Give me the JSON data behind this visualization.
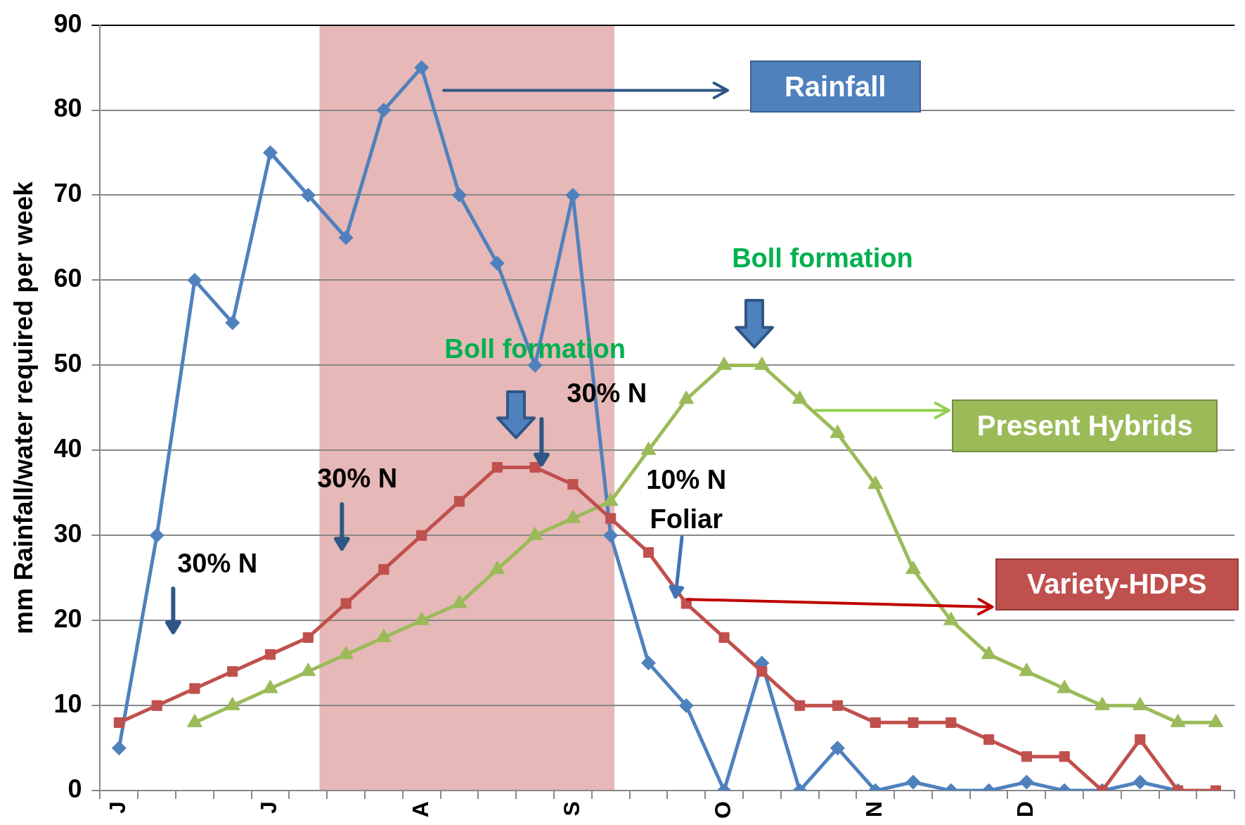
{
  "chart_data": {
    "type": "line",
    "ylabel": "mm Rainfall/water required per week",
    "categories": [
      "J",
      null,
      null,
      null,
      "J",
      null,
      null,
      null,
      "A",
      null,
      null,
      null,
      "S",
      null,
      null,
      null,
      "O",
      null,
      null,
      null,
      "N",
      null,
      null,
      null,
      "D",
      null,
      null,
      null,
      null,
      null
    ],
    "ylim": [
      0,
      90
    ],
    "yticks": [
      0,
      10,
      20,
      30,
      40,
      50,
      60,
      70,
      80,
      90
    ],
    "grid": "y",
    "legend": false,
    "series": [
      {
        "name": "Rainfall",
        "color": "#4f81bd",
        "marker": "diamond",
        "values": [
          5,
          30,
          60,
          55,
          75,
          70,
          65,
          80,
          85,
          70,
          62,
          50,
          70,
          30,
          15,
          10,
          0,
          15,
          0,
          5,
          0,
          1,
          0,
          0,
          1,
          0,
          0,
          1,
          0,
          null
        ]
      },
      {
        "name": "Variety-HDPS",
        "color": "#c0504d",
        "marker": "square",
        "values": [
          8,
          10,
          12,
          14,
          16,
          18,
          22,
          26,
          30,
          34,
          38,
          38,
          36,
          32,
          28,
          22,
          18,
          14,
          10,
          10,
          8,
          8,
          8,
          6,
          4,
          4,
          0,
          6,
          0,
          0
        ]
      },
      {
        "name": "Present Hybrids",
        "color": "#9bbb59",
        "marker": "triangle",
        "values": [
          null,
          null,
          8,
          10,
          12,
          14,
          16,
          18,
          20,
          22,
          26,
          30,
          32,
          34,
          40,
          46,
          50,
          50,
          46,
          42,
          36,
          26,
          20,
          16,
          14,
          12,
          10,
          10,
          8,
          8
        ]
      }
    ],
    "annotations": [
      "Boll formation",
      "Boll formation",
      "30% N",
      "30% N",
      "30% N",
      "10% N\nFoliar"
    ]
  }
}
